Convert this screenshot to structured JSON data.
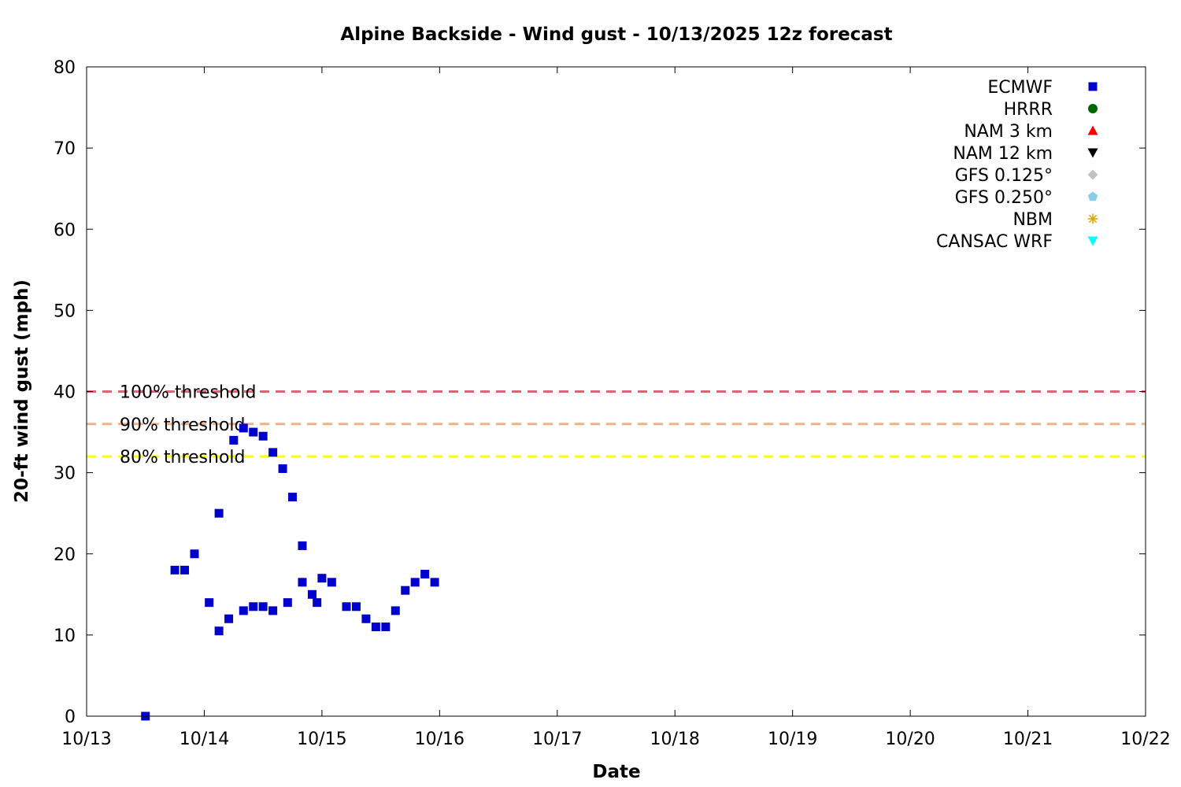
{
  "chart_data": {
    "type": "scatter",
    "title": "Alpine Backside - Wind gust - 10/13/2025 12z forecast",
    "xlabel": "Date",
    "ylabel": "20-ft wind gust (mph)",
    "xlim": [
      "2025-10-13T00:00",
      "2025-10-22T00:00"
    ],
    "ylim": [
      0,
      80
    ],
    "x_ticks": [
      "10/13",
      "10/14",
      "10/15",
      "10/16",
      "10/17",
      "10/18",
      "10/19",
      "10/20",
      "10/21",
      "10/22"
    ],
    "y_ticks": [
      0,
      10,
      20,
      30,
      40,
      50,
      60,
      70,
      80
    ],
    "grid": false,
    "legend_position": "top-right",
    "thresholds": [
      {
        "label": "100% threshold",
        "value": 40,
        "color": "#d9667a"
      },
      {
        "label": "90% threshold",
        "value": 36,
        "color": "#f4b183"
      },
      {
        "label": "80% threshold",
        "value": 32,
        "color": "#ffff00"
      }
    ],
    "series": [
      {
        "name": "ECMWF",
        "marker": "square",
        "color": "#0000cc",
        "points": [
          [
            "2025-10-13T12:00",
            0
          ],
          [
            "2025-10-13T18:00",
            18
          ],
          [
            "2025-10-13T20:00",
            18
          ],
          [
            "2025-10-13T22:00",
            20
          ],
          [
            "2025-10-14T03:00",
            25
          ],
          [
            "2025-10-14T06:00",
            34
          ],
          [
            "2025-10-14T08:00",
            35.5
          ],
          [
            "2025-10-14T10:00",
            35
          ],
          [
            "2025-10-14T12:00",
            34.5
          ],
          [
            "2025-10-14T14:00",
            32.5
          ],
          [
            "2025-10-14T16:00",
            30.5
          ],
          [
            "2025-10-14T18:00",
            27
          ],
          [
            "2025-10-14T20:00",
            21
          ],
          [
            "2025-10-14T23:00",
            14
          ],
          [
            "2025-10-14T01:00",
            14
          ],
          [
            "2025-10-14T03:00",
            10.5
          ],
          [
            "2025-10-14T05:00",
            12
          ],
          [
            "2025-10-14T08:00",
            13
          ],
          [
            "2025-10-14T10:00",
            13.5
          ],
          [
            "2025-10-14T12:00",
            13.5
          ],
          [
            "2025-10-14T14:00",
            13
          ],
          [
            "2025-10-14T17:00",
            14
          ],
          [
            "2025-10-14T20:00",
            16.5
          ],
          [
            "2025-10-14T22:00",
            15
          ],
          [
            "2025-10-15T00:00",
            17
          ],
          [
            "2025-10-15T02:00",
            16.5
          ],
          [
            "2025-10-15T05:00",
            13.5
          ],
          [
            "2025-10-15T07:00",
            13.5
          ],
          [
            "2025-10-15T09:00",
            12
          ],
          [
            "2025-10-15T11:00",
            11
          ],
          [
            "2025-10-15T13:00",
            11
          ],
          [
            "2025-10-15T15:00",
            13
          ],
          [
            "2025-10-15T17:00",
            15.5
          ],
          [
            "2025-10-15T19:00",
            16.5
          ],
          [
            "2025-10-15T21:00",
            17.5
          ],
          [
            "2025-10-15T23:00",
            16.5
          ]
        ]
      },
      {
        "name": "HRRR",
        "marker": "circle",
        "color": "#006400",
        "points": []
      },
      {
        "name": "NAM 3 km",
        "marker": "triangle-up",
        "color": "#ff0000",
        "points": []
      },
      {
        "name": "NAM 12 km",
        "marker": "triangle-down",
        "color": "#000000",
        "points": []
      },
      {
        "name": "GFS 0.125°",
        "marker": "diamond",
        "color": "#c0c0c0",
        "points": []
      },
      {
        "name": "GFS 0.250°",
        "marker": "pentagon",
        "color": "#87ceeb",
        "points": []
      },
      {
        "name": "NBM",
        "marker": "asterisk",
        "color": "#e69f00",
        "points": []
      },
      {
        "name": "CANSAC WRF",
        "marker": "triangle-down",
        "color": "#00ffff",
        "points": []
      }
    ]
  }
}
